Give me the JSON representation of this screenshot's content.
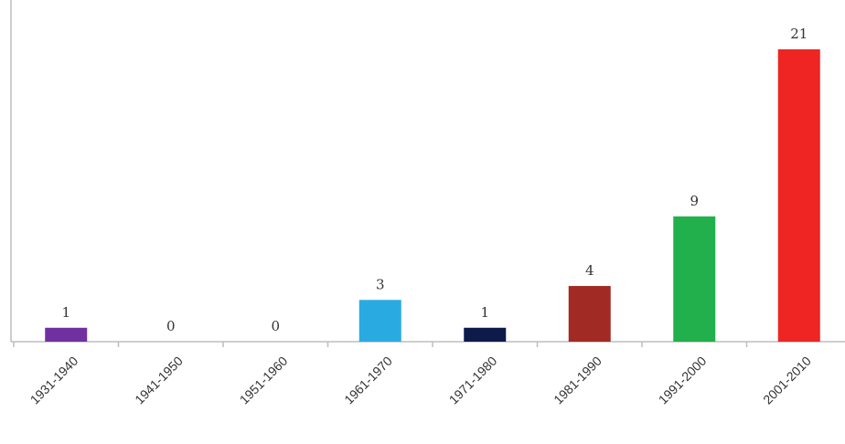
{
  "chart_data": {
    "type": "bar",
    "title": "",
    "xlabel": "",
    "ylabel": "",
    "categories": [
      "1931-1940",
      "1941-1950",
      "1951-1960",
      "1961-1970",
      "1971-1980",
      "1981-1990",
      "1991-2000",
      "2001-2010"
    ],
    "values": [
      1,
      0,
      0,
      3,
      1,
      4,
      9,
      21
    ],
    "value_labels": [
      "1",
      "0",
      "0",
      "3",
      "1",
      "4",
      "9",
      "21"
    ],
    "colors": [
      "#7030a0",
      "#7030a0",
      "#7030a0",
      "#29abe2",
      "#0d1a4a",
      "#a12a24",
      "#21b04b",
      "#ee2523"
    ],
    "ylim": [
      0,
      21
    ],
    "grid": false,
    "legend": "none"
  }
}
